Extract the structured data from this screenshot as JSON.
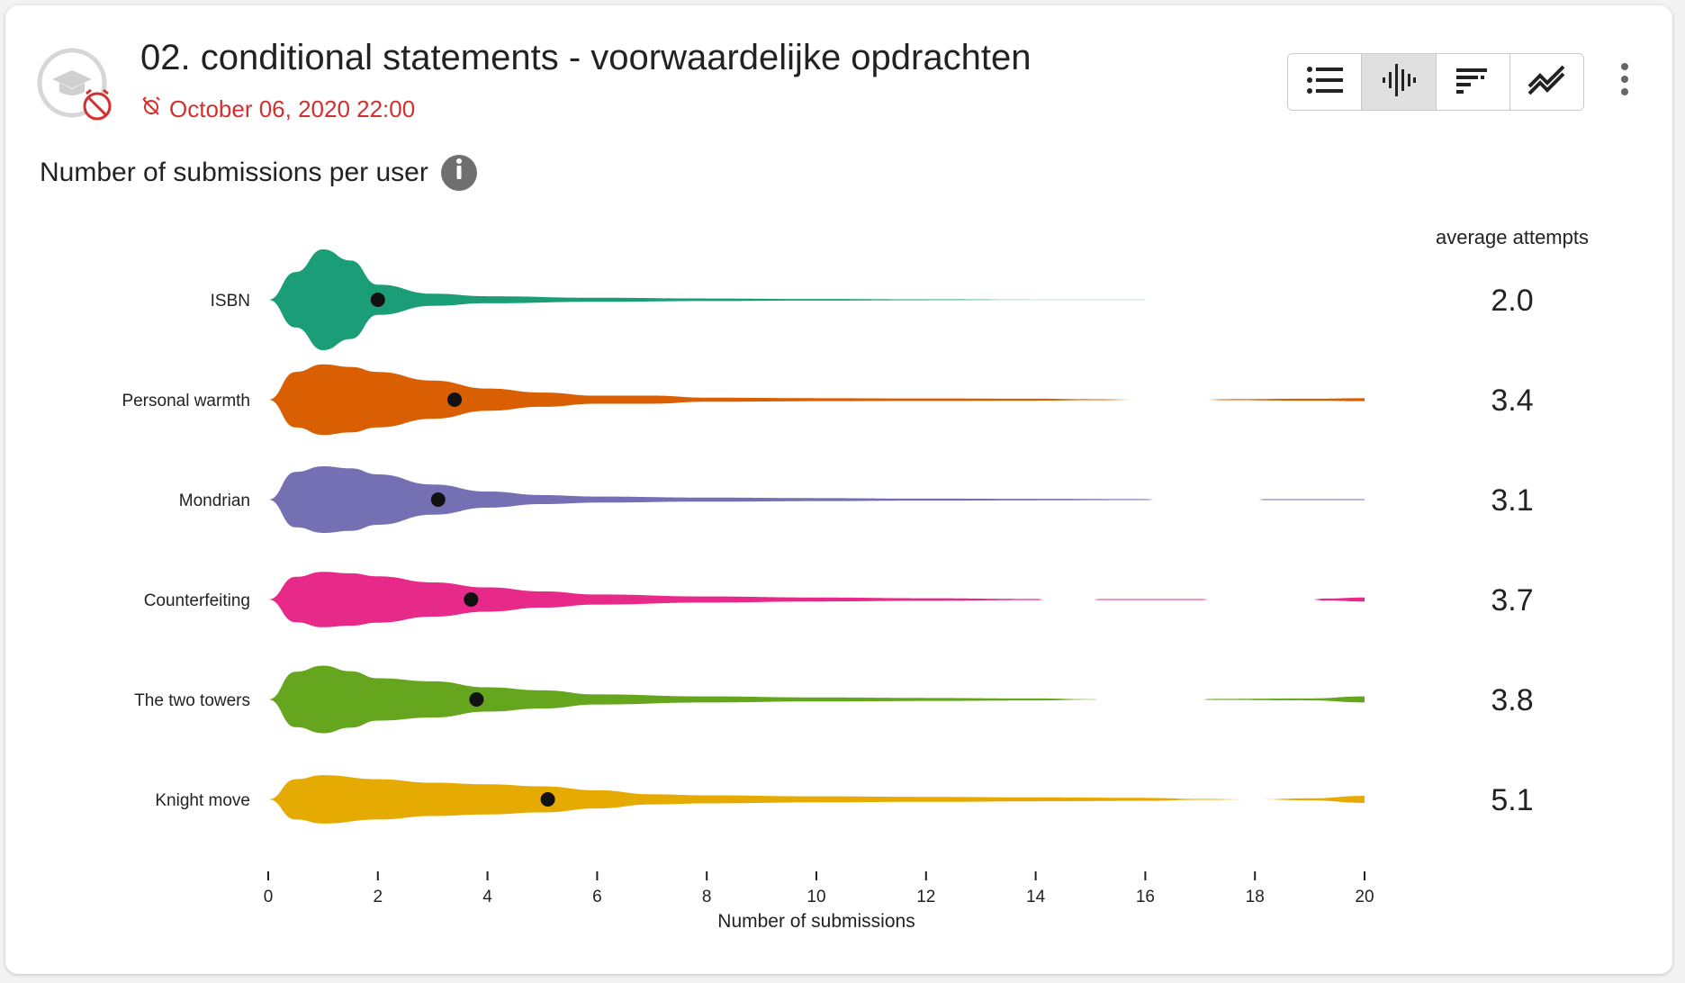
{
  "header": {
    "title": "02. conditional statements - voorwaardelijke opdrachten",
    "deadline": "October 06, 2020 22:00"
  },
  "toolbar": {
    "buttons": [
      {
        "icon": "list-icon",
        "active": false
      },
      {
        "icon": "violin-icon",
        "active": true
      },
      {
        "icon": "stacked-bars-icon",
        "active": false
      },
      {
        "icon": "timeseries-icon",
        "active": false
      }
    ]
  },
  "section": {
    "subtitle": "Number of submissions per user"
  },
  "colors": {
    "series": [
      "#1b9e77",
      "#d95f02",
      "#7570b3",
      "#e7298a",
      "#66a61e",
      "#e6ab02"
    ],
    "deadline": "#d32f2f"
  },
  "chart_data": {
    "type": "violin",
    "xlabel": "Number of submissions",
    "xlim": [
      0,
      20
    ],
    "xticks": [
      0,
      2,
      4,
      6,
      8,
      10,
      12,
      14,
      16,
      18,
      20
    ],
    "stat_header": "average attempts",
    "series": [
      {
        "name": "ISBN",
        "mean": 2.0,
        "mean_label": "2.0",
        "density": [
          [
            0,
            0.0
          ],
          [
            0.5,
            0.55
          ],
          [
            1,
            1.0
          ],
          [
            1.5,
            0.78
          ],
          [
            2,
            0.3
          ],
          [
            3,
            0.12
          ],
          [
            4,
            0.07
          ],
          [
            6,
            0.04
          ],
          [
            8,
            0.025
          ],
          [
            10,
            0.015
          ],
          [
            12,
            0.008
          ],
          [
            14,
            0.003
          ],
          [
            16,
            0.002
          ]
        ]
      },
      {
        "name": "Personal warmth",
        "mean": 3.4,
        "mean_label": "3.4",
        "density": [
          [
            0,
            0.0
          ],
          [
            0.5,
            0.55
          ],
          [
            1,
            0.7
          ],
          [
            1.5,
            0.65
          ],
          [
            2,
            0.55
          ],
          [
            3,
            0.38
          ],
          [
            4,
            0.22
          ],
          [
            5,
            0.14
          ],
          [
            6,
            0.08
          ],
          [
            7,
            0.08
          ],
          [
            8,
            0.04
          ],
          [
            10,
            0.03
          ],
          [
            12,
            0.025
          ],
          [
            14,
            0.02
          ],
          [
            15,
            0.01
          ],
          [
            16,
            0.0
          ],
          [
            17,
            0.0
          ],
          [
            17.5,
            0.01
          ],
          [
            19,
            0.02
          ],
          [
            20,
            0.03
          ]
        ]
      },
      {
        "name": "Mondrian",
        "mean": 3.1,
        "mean_label": "3.1",
        "density": [
          [
            0,
            0.0
          ],
          [
            0.5,
            0.55
          ],
          [
            1,
            0.66
          ],
          [
            1.5,
            0.62
          ],
          [
            2,
            0.5
          ],
          [
            3,
            0.3
          ],
          [
            4,
            0.16
          ],
          [
            5,
            0.09
          ],
          [
            6,
            0.06
          ],
          [
            8,
            0.04
          ],
          [
            10,
            0.03
          ],
          [
            12,
            0.02
          ],
          [
            14,
            0.015
          ],
          [
            16,
            0.01
          ],
          [
            16.2,
            0.0
          ],
          [
            18,
            0.0
          ],
          [
            18.2,
            0.01
          ],
          [
            20,
            0.01
          ]
        ]
      },
      {
        "name": "Counterfeiting",
        "mean": 3.7,
        "mean_label": "3.7",
        "density": [
          [
            0,
            0.0
          ],
          [
            0.5,
            0.45
          ],
          [
            1,
            0.55
          ],
          [
            1.5,
            0.52
          ],
          [
            2,
            0.46
          ],
          [
            3,
            0.34
          ],
          [
            4,
            0.24
          ],
          [
            5,
            0.16
          ],
          [
            6,
            0.1
          ],
          [
            8,
            0.06
          ],
          [
            10,
            0.04
          ],
          [
            12,
            0.025
          ],
          [
            14,
            0.012
          ],
          [
            14.2,
            0.0
          ],
          [
            15,
            0.0
          ],
          [
            15.2,
            0.01
          ],
          [
            17,
            0.01
          ],
          [
            17.2,
            0.0
          ],
          [
            19,
            0.0
          ],
          [
            19.3,
            0.02
          ],
          [
            20,
            0.04
          ]
        ]
      },
      {
        "name": "The two towers",
        "mean": 3.8,
        "mean_label": "3.8",
        "density": [
          [
            0,
            0.0
          ],
          [
            0.5,
            0.55
          ],
          [
            1,
            0.67
          ],
          [
            1.5,
            0.56
          ],
          [
            2,
            0.42
          ],
          [
            3,
            0.36
          ],
          [
            4,
            0.24
          ],
          [
            5,
            0.18
          ],
          [
            6,
            0.1
          ],
          [
            8,
            0.06
          ],
          [
            10,
            0.04
          ],
          [
            12,
            0.03
          ],
          [
            14,
            0.02
          ],
          [
            15,
            0.005
          ],
          [
            15.2,
            0.0
          ],
          [
            17,
            0.0
          ],
          [
            17.2,
            0.01
          ],
          [
            19,
            0.02
          ],
          [
            20,
            0.06
          ]
        ]
      },
      {
        "name": "Knight move",
        "mean": 5.1,
        "mean_label": "5.1",
        "density": [
          [
            0,
            0.0
          ],
          [
            0.5,
            0.4
          ],
          [
            1,
            0.48
          ],
          [
            2,
            0.4
          ],
          [
            3,
            0.33
          ],
          [
            4,
            0.3
          ],
          [
            5,
            0.26
          ],
          [
            6,
            0.18
          ],
          [
            7,
            0.1
          ],
          [
            8,
            0.08
          ],
          [
            10,
            0.06
          ],
          [
            12,
            0.05
          ],
          [
            14,
            0.04
          ],
          [
            16,
            0.03
          ],
          [
            17,
            0.01
          ],
          [
            18,
            0.0
          ],
          [
            19,
            0.02
          ],
          [
            20,
            0.07
          ]
        ]
      }
    ]
  }
}
